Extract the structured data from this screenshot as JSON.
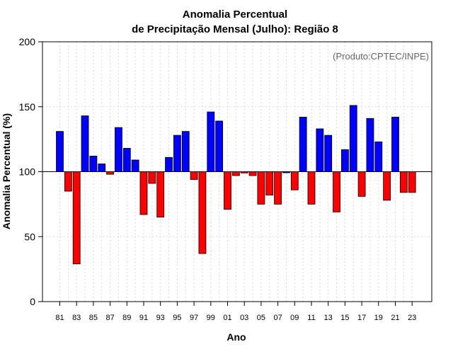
{
  "chart_data": {
    "type": "bar",
    "title_line1": "Anomalia Percentual",
    "title_line2": "de Precipitação Mensal (Julho): Região 8",
    "credit": "(Produto:CPTEC/INPE)",
    "xlabel": "Ano",
    "ylabel": "Anomalia Percentual (%)",
    "ylim": [
      0,
      200
    ],
    "yticks": [
      "0",
      "50",
      "100",
      "150",
      "200"
    ],
    "baseline": 100,
    "grid": true,
    "colors": {
      "above": "#0000ff",
      "below": "#ff0000",
      "edge": "#000000",
      "grid": "#d9d9d9"
    },
    "categories": [
      "81",
      "82",
      "83",
      "84",
      "85",
      "86",
      "87",
      "88",
      "89",
      "90",
      "91",
      "92",
      "93",
      "94",
      "95",
      "96",
      "97",
      "98",
      "99",
      "00",
      "01",
      "02",
      "03",
      "04",
      "05",
      "06",
      "07",
      "08",
      "09",
      "10",
      "11",
      "12",
      "13",
      "14",
      "15",
      "16",
      "17",
      "18",
      "19",
      "20",
      "21",
      "22",
      "23"
    ],
    "xtick_labels": [
      "81",
      "83",
      "85",
      "87",
      "89",
      "91",
      "93",
      "95",
      "97",
      "99",
      "01",
      "03",
      "05",
      "07",
      "09",
      "11",
      "13",
      "15",
      "17",
      "19",
      "21",
      "23"
    ],
    "values": [
      131,
      85,
      29,
      143,
      112,
      106,
      98,
      134,
      118,
      109,
      67,
      91,
      65,
      111,
      128,
      131,
      94,
      37,
      146,
      139,
      71,
      97,
      99,
      97,
      75,
      82,
      75,
      100,
      86,
      142,
      75,
      133,
      128,
      69,
      117,
      151,
      81,
      141,
      123,
      78,
      142,
      84,
      84
    ]
  }
}
